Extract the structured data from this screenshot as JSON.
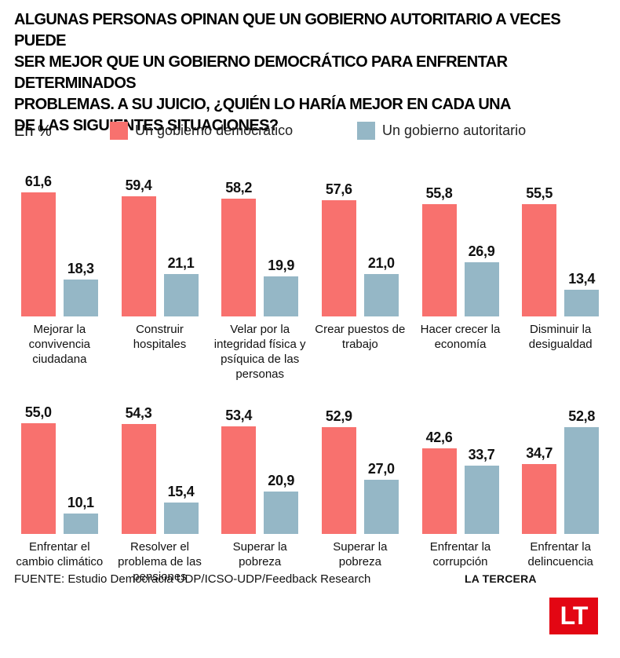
{
  "header": {
    "title_lines": [
      "ALGUNAS PERSONAS OPINAN QUE UN GOBIERNO AUTORITARIO A VECES PUEDE",
      "SER MEJOR QUE UN GOBIERNO DEMOCRÁTICO PARA ENFRENTAR DETERMINADOS",
      "PROBLEMAS. A SU JUICIO, ¿QUIÉN LO HARÍA MEJOR EN CADA UNA",
      "DE LAS SIGUIENTES SITUACIONES?"
    ]
  },
  "legend": {
    "unit_label": "En %",
    "items": [
      {
        "label": "Un gobierno democrático",
        "color": "#F8716E"
      },
      {
        "label": "Un gobierno autoritario",
        "color": "#95B7C6"
      }
    ]
  },
  "chart_data": {
    "type": "bar",
    "unit": "%",
    "title": "Algunas personas opinan que un gobierno autoritario a veces puede ser mejor que un gobierno democrático para enfrentar determinados problemas. A su juicio, ¿quién lo haría mejor en cada una de las siguientes situaciones?",
    "series": [
      {
        "name": "Un gobierno democrático",
        "color": "#F8716E"
      },
      {
        "name": "Un gobierno autoritario",
        "color": "#95B7C6"
      }
    ],
    "ylim": [
      0,
      62
    ],
    "rows": [
      {
        "groups": [
          {
            "label": "Mejorar la convivencia ciudadana",
            "values": [
              61.6,
              18.3
            ]
          },
          {
            "label": "Construir hospitales",
            "values": [
              59.4,
              21.1
            ]
          },
          {
            "label": "Velar por la integridad física y psíquica de las personas",
            "values": [
              58.2,
              19.9
            ]
          },
          {
            "label": "Crear puestos de trabajo",
            "values": [
              57.6,
              21.0
            ]
          },
          {
            "label": "Hacer crecer la economía",
            "values": [
              55.8,
              26.9
            ]
          },
          {
            "label": "Disminuir la desigualdad",
            "values": [
              55.5,
              13.4
            ]
          }
        ]
      },
      {
        "groups": [
          {
            "label": "Enfrentar el cambio climático",
            "values": [
              55.0,
              10.1
            ]
          },
          {
            "label": "Resolver el problema de las pensiones",
            "values": [
              54.3,
              15.4
            ]
          },
          {
            "label": "Superar la pobreza",
            "values": [
              53.4,
              20.9
            ]
          },
          {
            "label": "Superar la pobreza",
            "values": [
              52.9,
              27.0
            ]
          },
          {
            "label": "Enfrentar la corrupción",
            "values": [
              42.6,
              33.7
            ]
          },
          {
            "label": "Enfrentar la delincuencia",
            "values": [
              34.7,
              52.8
            ]
          }
        ]
      }
    ]
  },
  "footer": {
    "source": "FUENTE: Estudio Democracia UDP/ICSO-UDP/Feedback Research",
    "brand": "LA TERCERA",
    "logo_text": "LT",
    "logo_color": "#E30613"
  }
}
